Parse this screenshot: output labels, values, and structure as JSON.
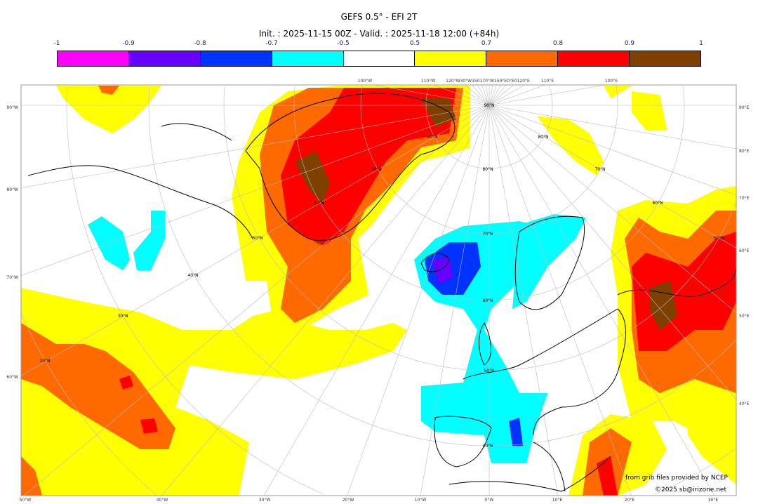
{
  "title": "GEFS 0.5° - EFI 2T",
  "subtitle": "Init. : 2025-11-15 00Z - Valid. : 2025-11-18 12:00 (+84h)",
  "colorbar": {
    "ticks": [
      "-1",
      "-0.9",
      "-0.8",
      "-0.7",
      "-0.5",
      "0.5",
      "0.7",
      "0.8",
      "0.9",
      "1"
    ],
    "colors": [
      "#ff00ff",
      "#6600ff",
      "#0033ff",
      "#00ffff",
      "#ffffff",
      "#ffff00",
      "#ff6a00",
      "#ff0000",
      "#7f3f00"
    ]
  },
  "map": {
    "top_labels": [
      "100°W",
      "110°W",
      "120°W30°W150170°W150°E0°E0120°E",
      "110°E",
      "100°E"
    ],
    "left_labels": [
      "90°W",
      "80°W",
      "70°W",
      "60°W"
    ],
    "right_labels": [
      "90°E",
      "80°E",
      "70°E",
      "60°E",
      "50°E",
      "40°E"
    ],
    "bottom_labels": [
      "50°W",
      "40°W",
      "30°W",
      "20°W",
      "10°W",
      "0°W",
      "10°E",
      "20°E",
      "30°E"
    ],
    "lat_labels": [
      "90°N",
      "80°N",
      "70°N",
      "60°N",
      "50°N",
      "40°N",
      "60°N",
      "70°N",
      "80°N",
      "50°N",
      "40°N",
      "30°N",
      "20°N",
      "80°N",
      "70°N",
      "60°N",
      "50°N"
    ]
  },
  "credits": {
    "source": "from grib files provided by NCEP",
    "copyright": "©2025 sb@irizone.net"
  }
}
